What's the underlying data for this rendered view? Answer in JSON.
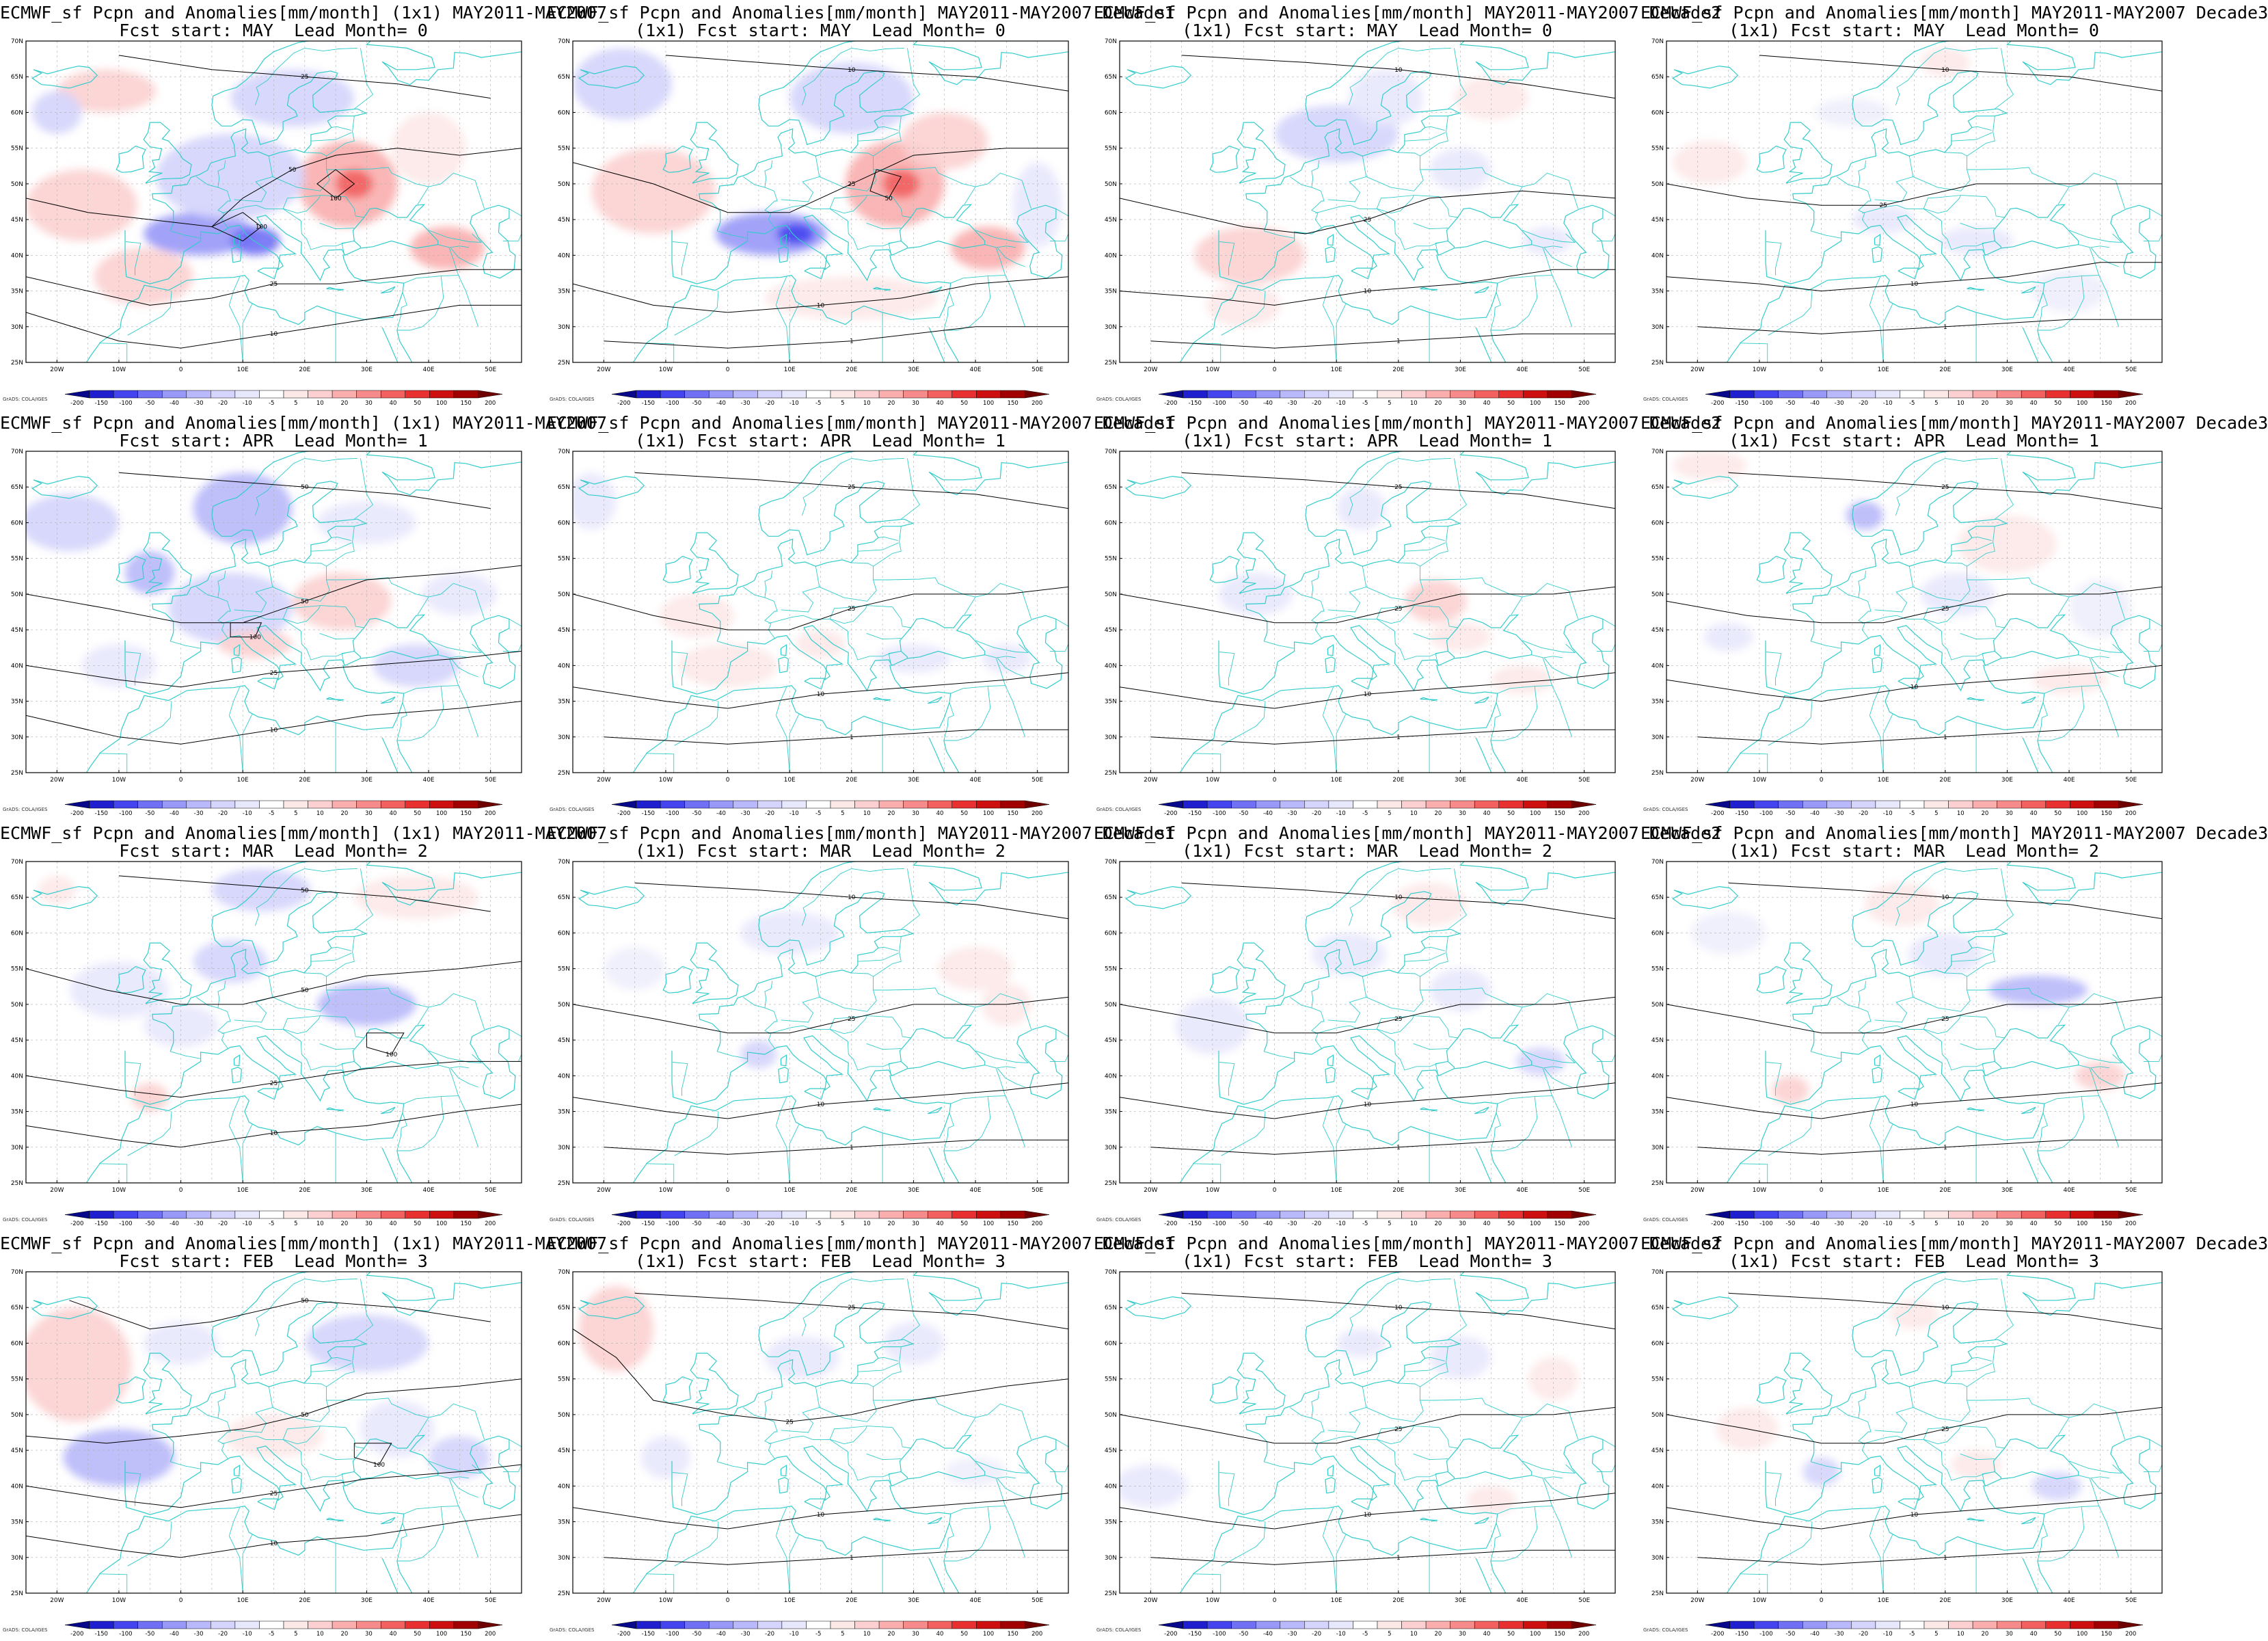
{
  "figure": {
    "lat_labels": [
      "25N",
      "30N",
      "35N",
      "40N",
      "45N",
      "50N",
      "55N",
      "60N",
      "65N",
      "70N"
    ],
    "lon_labels": [
      "20W",
      "10W",
      "0",
      "10E",
      "20E",
      "30E",
      "40E",
      "50E"
    ],
    "colorbar_labels": [
      "-200",
      "-150",
      "-100",
      "-50",
      "-40",
      "-30",
      "-20",
      "-10",
      "-5",
      "5",
      "10",
      "20",
      "30",
      "40",
      "50",
      "100",
      "150",
      "200"
    ],
    "colorbar_colors": [
      "#08088a",
      "#1f1fd0",
      "#4545f0",
      "#7070f5",
      "#9898f8",
      "#b8b8fa",
      "#d4d4fc",
      "#e8e8fd",
      "#ffffff",
      "#fde8e8",
      "#fcd0d0",
      "#faaeae",
      "#f78a8a",
      "#f26060",
      "#e83030",
      "#cc1010",
      "#a00000",
      "#700000"
    ],
    "credit": "GrADS: COLA/IGES",
    "coast_color": "#33cccc",
    "contour_color": "#000000"
  },
  "panels": [
    {
      "title_line1": "ECMWF_sf Pcpn and Anomalies[mm/month] (1x1) MAY2011-MAY2007",
      "title_line2": "Fcst start: MAY  Lead Month= 0"
    },
    {
      "title_line1": "ECMWF_sf Pcpn and Anomalies[mm/month] MAY2011-MAY2007 Decade1",
      "title_line2": "(1x1) Fcst start: MAY  Lead Month= 0"
    },
    {
      "title_line1": "ECMWF_sf Pcpn and Anomalies[mm/month] MAY2011-MAY2007 Decade2",
      "title_line2": "(1x1) Fcst start: MAY  Lead Month= 0"
    },
    {
      "title_line1": "ECMWF_sf Pcpn and Anomalies[mm/month] MAY2011-MAY2007 Decade3",
      "title_line2": "(1x1) Fcst start: MAY  Lead Month= 0"
    },
    {
      "title_line1": "ECMWF_sf Pcpn and Anomalies[mm/month] (1x1) MAY2011-MAY2007",
      "title_line2": "Fcst start: APR  Lead Month= 1"
    },
    {
      "title_line1": "ECMWF_sf Pcpn and Anomalies[mm/month] MAY2011-MAY2007 Decade1",
      "title_line2": "(1x1) Fcst start: APR  Lead Month= 1"
    },
    {
      "title_line1": "ECMWF_sf Pcpn and Anomalies[mm/month] MAY2011-MAY2007 Decade2",
      "title_line2": "(1x1) Fcst start: APR  Lead Month= 1"
    },
    {
      "title_line1": "ECMWF_sf Pcpn and Anomalies[mm/month] MAY2011-MAY2007 Decade3",
      "title_line2": "(1x1) Fcst start: APR  Lead Month= 1"
    },
    {
      "title_line1": "ECMWF_sf Pcpn and Anomalies[mm/month] (1x1) MAY2011-MAY2007",
      "title_line2": "Fcst start: MAR  Lead Month= 2"
    },
    {
      "title_line1": "ECMWF_sf Pcpn and Anomalies[mm/month] MAY2011-MAY2007 Decade1",
      "title_line2": "(1x1) Fcst start: MAR  Lead Month= 2"
    },
    {
      "title_line1": "ECMWF_sf Pcpn and Anomalies[mm/month] MAY2011-MAY2007 Decade2",
      "title_line2": "(1x1) Fcst start: MAR  Lead Month= 2"
    },
    {
      "title_line1": "ECMWF_sf Pcpn and Anomalies[mm/month] MAY2011-MAY2007 Decade3",
      "title_line2": "(1x1) Fcst start: MAR  Lead Month= 2"
    },
    {
      "title_line1": "ECMWF_sf Pcpn and Anomalies[mm/month] (1x1) MAY2011-MAY2007",
      "title_line2": "Fcst start: FEB  Lead Month= 3"
    },
    {
      "title_line1": "ECMWF_sf Pcpn and Anomalies[mm/month] MAY2011-MAY2007 Decade1",
      "title_line2": "(1x1) Fcst start: FEB  Lead Month= 3"
    },
    {
      "title_line1": "ECMWF_sf Pcpn and Anomalies[mm/month] MAY2011-MAY2007 Decade2",
      "title_line2": "(1x1) Fcst start: FEB  Lead Month= 3"
    },
    {
      "title_line1": "ECMWF_sf Pcpn and Anomalies[mm/month] MAY2011-MAY2007 Decade3",
      "title_line2": "(1x1) Fcst start: FEB  Lead Month= 3"
    }
  ]
}
